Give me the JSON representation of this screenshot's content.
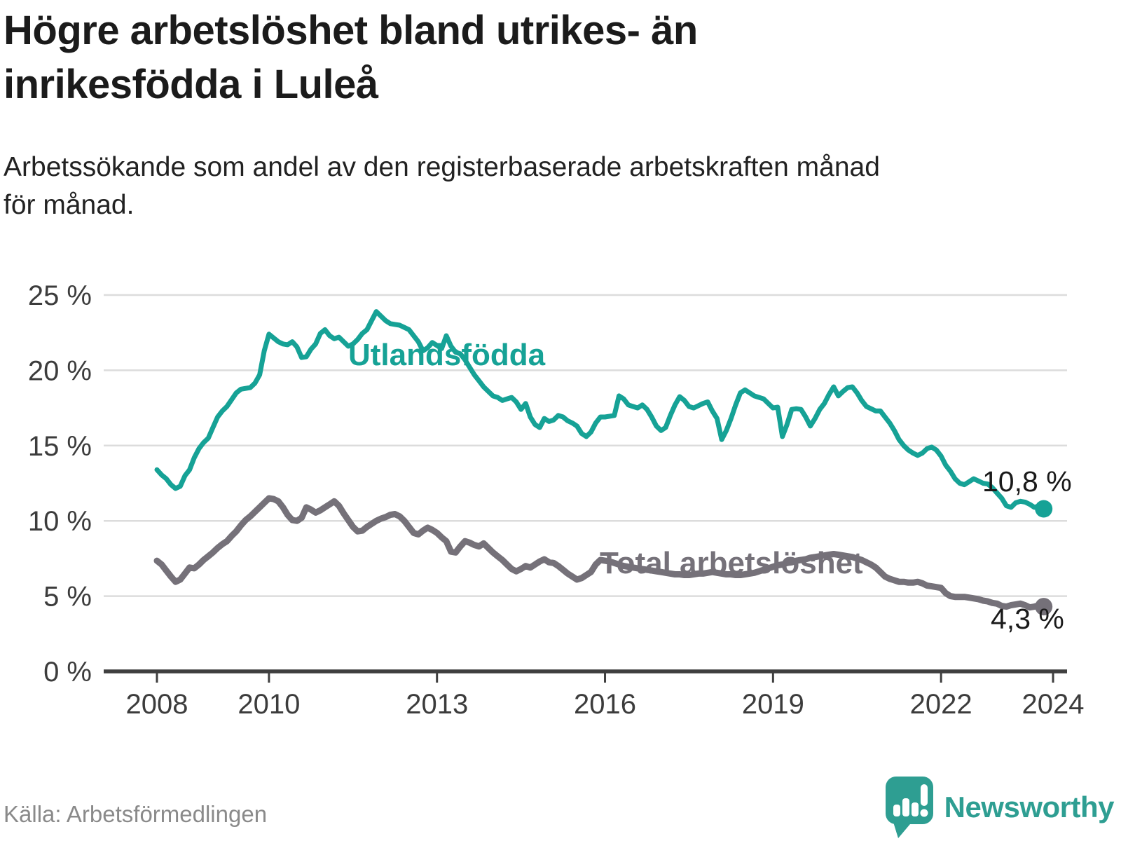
{
  "title_lines": [
    "Högre arbetslöshet bland utrikes- än",
    "inrikesfödda i Luleå"
  ],
  "subtitle_lines": [
    "Arbetssökande som andel av den registerbaserade arbetskraften månad",
    "för månad."
  ],
  "source": "Källa: Arbetsförmedlingen",
  "brand": {
    "name": "Newsworthy",
    "color": "#2e9e92"
  },
  "chart_data": {
    "type": "line",
    "title": "Högre arbetslöshet bland utrikes- än inrikesfödda i Luleå",
    "subtitle": "Arbetssökande som andel av den registerbaserade arbetskraften månad för månad.",
    "unit": "percent",
    "x_start": "2008-01",
    "x_end": "2023-11",
    "points_per_year": 12,
    "x_tick_years": [
      2008,
      2010,
      2013,
      2016,
      2019,
      2022,
      2024
    ],
    "ylim": [
      0,
      25
    ],
    "grid": true,
    "y_ticks": [
      {
        "value": 0,
        "label": "0 %"
      },
      {
        "value": 5,
        "label": "5 %"
      },
      {
        "value": 10,
        "label": "10 %"
      },
      {
        "value": 15,
        "label": "15 %"
      },
      {
        "value": 20,
        "label": "20 %"
      },
      {
        "value": 25,
        "label": "25 %"
      }
    ],
    "series": [
      {
        "name": "Utlandsfödda",
        "color": "#16a296",
        "end_label": "10,8 %",
        "last_value": 10.8,
        "values": [
          13.4,
          13.05,
          12.8,
          12.4,
          12.15,
          12.3,
          13.0,
          13.4,
          14.2,
          14.8,
          15.2,
          15.5,
          16.2,
          16.9,
          17.3,
          17.6,
          18.05,
          18.5,
          18.75,
          18.8,
          18.85,
          19.15,
          19.7,
          21.3,
          22.4,
          22.15,
          21.9,
          21.75,
          21.7,
          21.9,
          21.55,
          20.85,
          20.9,
          21.4,
          21.75,
          22.45,
          22.7,
          22.3,
          22.1,
          22.2,
          21.9,
          21.6,
          21.75,
          22.05,
          22.45,
          22.7,
          23.3,
          23.9,
          23.6,
          23.3,
          23.1,
          23.05,
          23.0,
          22.85,
          22.7,
          22.3,
          21.9,
          21.3,
          21.5,
          21.85,
          21.65,
          21.45,
          22.3,
          21.6,
          21.2,
          21.1,
          20.7,
          20.2,
          19.7,
          19.3,
          18.9,
          18.6,
          18.3,
          18.2,
          18.0,
          18.1,
          18.2,
          17.9,
          17.4,
          17.8,
          16.9,
          16.4,
          16.2,
          16.8,
          16.6,
          16.7,
          17.0,
          16.9,
          16.65,
          16.5,
          16.3,
          15.8,
          15.6,
          15.9,
          16.5,
          16.9,
          16.9,
          16.95,
          17.0,
          18.3,
          18.1,
          17.7,
          17.6,
          17.5,
          17.7,
          17.4,
          16.9,
          16.3,
          16.0,
          16.2,
          17.0,
          17.7,
          18.25,
          18.0,
          17.6,
          17.5,
          17.65,
          17.8,
          17.9,
          17.3,
          16.8,
          15.4,
          16.0,
          16.8,
          17.7,
          18.5,
          18.7,
          18.5,
          18.3,
          18.2,
          18.1,
          17.8,
          17.5,
          17.55,
          15.6,
          16.4,
          17.4,
          17.45,
          17.4,
          16.9,
          16.3,
          16.8,
          17.4,
          17.8,
          18.4,
          18.9,
          18.3,
          18.6,
          18.85,
          18.9,
          18.5,
          18.0,
          17.6,
          17.45,
          17.3,
          17.3,
          16.9,
          16.5,
          16.0,
          15.4,
          15.0,
          14.7,
          14.5,
          14.35,
          14.5,
          14.8,
          14.9,
          14.7,
          14.3,
          13.7,
          13.3,
          12.8,
          12.5,
          12.4,
          12.6,
          12.8,
          12.65,
          12.5,
          12.45,
          12.2,
          11.85,
          11.5,
          11.0,
          10.9,
          11.2,
          11.3,
          11.25,
          11.1,
          10.9,
          11.0,
          10.8
        ]
      },
      {
        "name": "Total arbetslöshet",
        "color": "#757179",
        "end_label": "4,3 %",
        "last_value": 4.3,
        "values": [
          7.35,
          7.1,
          6.7,
          6.3,
          5.95,
          6.1,
          6.5,
          6.9,
          6.85,
          7.1,
          7.4,
          7.65,
          7.9,
          8.2,
          8.45,
          8.65,
          9.0,
          9.3,
          9.7,
          10.05,
          10.3,
          10.6,
          10.9,
          11.2,
          11.5,
          11.45,
          11.3,
          10.9,
          10.4,
          10.05,
          10.0,
          10.2,
          10.9,
          10.75,
          10.55,
          10.7,
          10.9,
          11.1,
          11.3,
          11.0,
          10.5,
          10.05,
          9.6,
          9.3,
          9.35,
          9.6,
          9.8,
          10.0,
          10.15,
          10.25,
          10.4,
          10.45,
          10.3,
          10.0,
          9.6,
          9.2,
          9.1,
          9.35,
          9.55,
          9.4,
          9.2,
          8.9,
          8.65,
          7.95,
          7.9,
          8.3,
          8.65,
          8.55,
          8.4,
          8.3,
          8.5,
          8.2,
          7.9,
          7.65,
          7.4,
          7.1,
          6.8,
          6.65,
          6.8,
          7.0,
          6.9,
          7.1,
          7.3,
          7.45,
          7.25,
          7.2,
          7.0,
          6.75,
          6.5,
          6.3,
          6.1,
          6.2,
          6.4,
          6.6,
          7.1,
          7.4,
          7.35,
          7.3,
          7.2,
          7.1,
          7.0,
          6.95,
          6.9,
          6.85,
          6.8,
          6.75,
          6.7,
          6.65,
          6.6,
          6.55,
          6.5,
          6.45,
          6.45,
          6.4,
          6.4,
          6.45,
          6.5,
          6.5,
          6.55,
          6.6,
          6.55,
          6.5,
          6.45,
          6.45,
          6.4,
          6.4,
          6.45,
          6.5,
          6.55,
          6.65,
          6.75,
          6.85,
          6.95,
          7.05,
          7.1,
          7.2,
          7.25,
          7.35,
          7.4,
          7.45,
          7.55,
          7.6,
          7.65,
          7.7,
          7.75,
          7.8,
          7.75,
          7.7,
          7.65,
          7.6,
          7.5,
          7.4,
          7.25,
          7.1,
          6.9,
          6.6,
          6.3,
          6.15,
          6.05,
          5.95,
          5.95,
          5.9,
          5.9,
          5.95,
          5.85,
          5.7,
          5.65,
          5.6,
          5.55,
          5.2,
          5.0,
          4.95,
          4.95,
          4.95,
          4.9,
          4.85,
          4.8,
          4.7,
          4.65,
          4.55,
          4.5,
          4.35,
          4.3,
          4.4,
          4.45,
          4.5,
          4.4,
          4.25,
          4.3,
          4.4,
          4.3
        ]
      }
    ]
  }
}
